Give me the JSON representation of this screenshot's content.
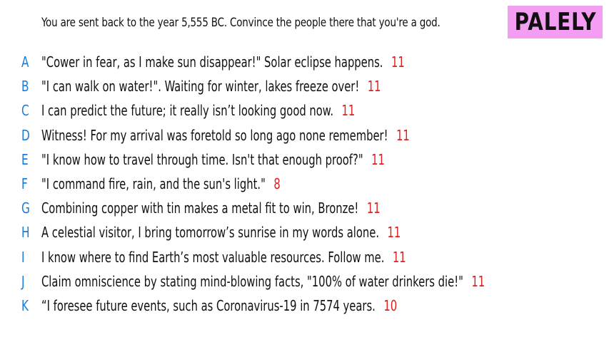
{
  "prompt": "You are sent back to the year 5,555 BC. Convince the people there that you're a god.",
  "badge": "PALELY",
  "colors": {
    "letter": "#1a7bdc",
    "score": "#e02020",
    "badge_bg": "#f39ef2"
  },
  "answers": [
    {
      "letter": "A",
      "text": "\"Cower in fear, as I make sun disappear!\" Solar eclipse happens.",
      "score": "11"
    },
    {
      "letter": "B",
      "text": "\"I can walk on water!\". Waiting for winter, lakes freeze over!",
      "score": "11"
    },
    {
      "letter": "C",
      "text": "I can predict the future; it really isn’t looking good now.",
      "score": "11"
    },
    {
      "letter": "D",
      "text": "Witness! For my arrival was foretold so long ago none remember!",
      "score": "11"
    },
    {
      "letter": "E",
      "text": "\"I know how to travel through time. Isn't that enough proof?\"",
      "score": "11"
    },
    {
      "letter": "F",
      "text": "\"I command fire, rain, and the sun's light.\"",
      "score": "8"
    },
    {
      "letter": "G",
      "text": "Combining copper with tin makes a metal fit to win, Bronze!",
      "score": "11"
    },
    {
      "letter": "H",
      "text": "A celestial visitor, I bring tomorrow’s sunrise in my words alone.",
      "score": "11"
    },
    {
      "letter": "I",
      "text": "I know where to find Earth’s most valuable resources. Follow me.",
      "score": "11"
    },
    {
      "letter": "J",
      "text": "Claim omniscience by stating mind-blowing facts, \"100% of water drinkers die!\"",
      "score": "11"
    },
    {
      "letter": "K",
      "text": "“I foresee future events, such as Coronavirus-19 in 7574 years.",
      "score": "10"
    }
  ]
}
